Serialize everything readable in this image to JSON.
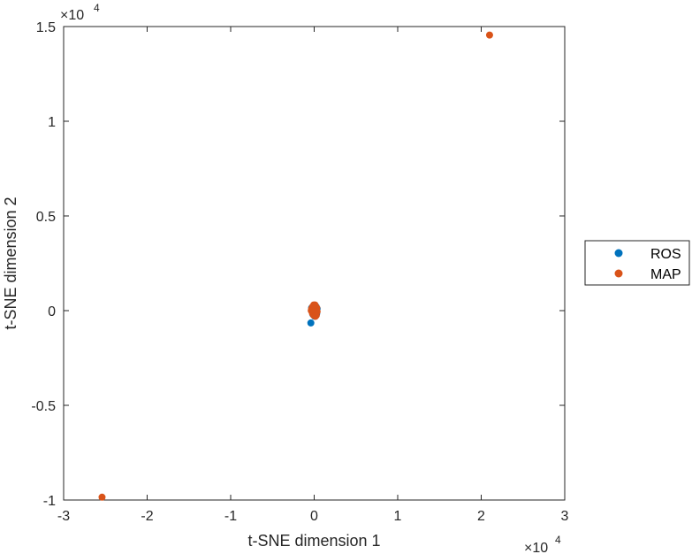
{
  "chart_data": {
    "type": "scatter",
    "xlabel": "t-SNE dimension 1",
    "ylabel": "t-SNE dimension 2",
    "xlim": [
      -30000,
      30000
    ],
    "ylim": [
      -10000,
      15000
    ],
    "x_ticks": [
      -30000,
      -20000,
      -10000,
      0,
      10000,
      20000,
      30000
    ],
    "x_tick_labels": [
      "-3",
      "-2",
      "-1",
      "0",
      "1",
      "2",
      "3"
    ],
    "y_ticks": [
      -10000,
      -5000,
      0,
      5000,
      10000,
      15000
    ],
    "y_tick_labels": [
      "-1",
      "-0.5",
      "0",
      "0.5",
      "1",
      "1.5"
    ],
    "x_multiplier": {
      "base": "×10",
      "exponent": "4"
    },
    "y_multiplier": {
      "base": "×10",
      "exponent": "4"
    },
    "grid": false,
    "legend_position": "outside-right",
    "series": [
      {
        "name": "ROS",
        "color": "#0072BD",
        "points": [
          [
            -400,
            -650
          ],
          [
            -300,
            150
          ],
          [
            0,
            200
          ],
          [
            200,
            -50
          ],
          [
            350,
            100
          ],
          [
            -150,
            -200
          ],
          [
            100,
            250
          ],
          [
            -250,
            50
          ],
          [
            300,
            -150
          ],
          [
            50,
            -300
          ],
          [
            -100,
            100
          ],
          [
            250,
            200
          ]
        ]
      },
      {
        "name": "MAP",
        "color": "#D95319",
        "points": [
          [
            21000,
            14550
          ],
          [
            -25400,
            -9850
          ],
          [
            0,
            0
          ],
          [
            150,
            100
          ],
          [
            -150,
            150
          ],
          [
            100,
            -150
          ],
          [
            -100,
            -100
          ],
          [
            250,
            50
          ],
          [
            -250,
            -50
          ],
          [
            50,
            250
          ],
          [
            -50,
            -250
          ],
          [
            200,
            200
          ],
          [
            -200,
            200
          ],
          [
            200,
            -200
          ],
          [
            -200,
            -150
          ],
          [
            300,
            150
          ],
          [
            -300,
            100
          ],
          [
            100,
            300
          ],
          [
            0,
            -200
          ],
          [
            350,
            -50
          ],
          [
            -350,
            0
          ],
          [
            150,
            -300
          ],
          [
            -50,
            300
          ],
          [
            250,
            -250
          ]
        ]
      }
    ]
  }
}
